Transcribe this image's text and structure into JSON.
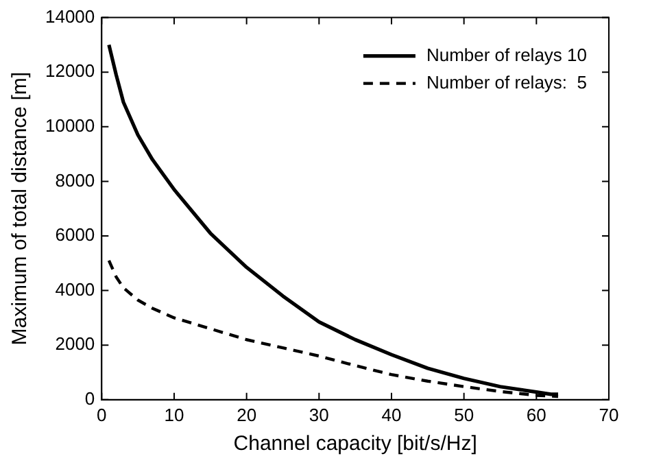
{
  "chart_data": {
    "type": "line",
    "xlabel": "Channel capacity [bit/s/Hz]",
    "ylabel": "Maximum of total distance [m]",
    "xlim": [
      0,
      70
    ],
    "xticks": [
      0,
      10,
      20,
      30,
      40,
      50,
      60,
      70
    ],
    "ylim": [
      0,
      14000
    ],
    "yticks": [
      0,
      2000,
      4000,
      6000,
      8000,
      10000,
      12000,
      14000
    ],
    "grid": false,
    "legend": "top right",
    "marker": "none",
    "series": [
      {
        "name": "Number of relays 10",
        "color": "#000000",
        "line_style": "solid",
        "x": [
          1,
          2,
          3,
          5,
          7,
          10,
          15,
          20,
          25,
          30,
          35,
          40,
          45,
          50,
          55,
          60,
          62,
          63
        ],
        "values": [
          13000,
          11900,
          10900,
          9700,
          8800,
          7700,
          6100,
          4850,
          3800,
          2850,
          2200,
          1650,
          1150,
          780,
          480,
          280,
          200,
          200
        ]
      },
      {
        "name": "Number of relays:  5",
        "color": "#000000",
        "line_style": "dashed",
        "x": [
          1,
          2,
          3,
          5,
          7,
          10,
          15,
          20,
          25,
          30,
          35,
          40,
          45,
          50,
          55,
          60,
          63
        ],
        "values": [
          5100,
          4500,
          4100,
          3650,
          3350,
          3000,
          2600,
          2200,
          1900,
          1600,
          1250,
          920,
          680,
          480,
          300,
          160,
          120
        ]
      }
    ]
  }
}
